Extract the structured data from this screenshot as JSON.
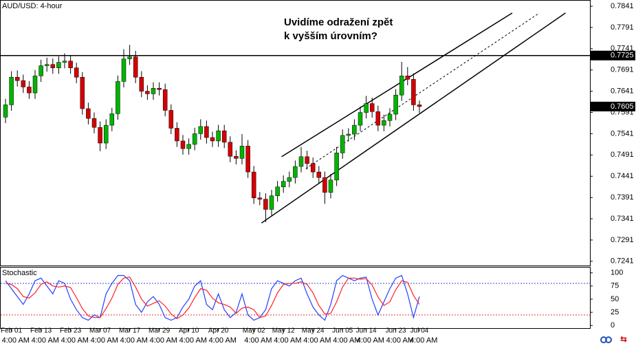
{
  "chart_data": [
    {
      "type": "candlestick",
      "title": "AUD/USD: 4-hour",
      "annotation": [
        "Uvidíme odražení zpět",
        "k vyšším úrovním?"
      ],
      "categories": [
        null,
        "Feb 01",
        null,
        null,
        null,
        null,
        "Feb 13",
        null,
        null,
        null,
        null,
        "Feb 23",
        null,
        null,
        null,
        null,
        "Mar 07",
        null,
        null,
        null,
        null,
        "Mar 17",
        null,
        null,
        null,
        null,
        "Mar 29",
        null,
        null,
        null,
        null,
        "Apr 10",
        null,
        null,
        null,
        null,
        "Apr 20",
        null,
        null,
        null,
        null,
        null,
        "May 02",
        null,
        null,
        null,
        null,
        "May 12",
        null,
        null,
        null,
        null,
        "May 24",
        null,
        null,
        null,
        null,
        "Jun 05",
        null,
        null,
        null,
        "Jun 14",
        null,
        null,
        null,
        null,
        "Jun 23",
        null,
        null,
        null,
        "Jul 04"
      ],
      "time_labels": [
        "4:00 AM",
        "4:00 AM",
        "4:00 AM",
        "4:00 AM",
        "4:00 AM",
        "4:00 AM",
        "4:00 AM",
        "4:00 AM",
        "4:00 AM",
        "4:00 AM",
        "4:00 AM",
        "4:00 AM",
        "4:00 AM",
        "4:00 AM",
        "4:00 AM"
      ],
      "open": [
        0.758,
        0.7609,
        0.7674,
        0.7666,
        0.7651,
        0.7637,
        0.7677,
        0.7701,
        0.7704,
        0.7696,
        0.7709,
        0.7712,
        0.7696,
        0.7674,
        0.76,
        0.7577,
        0.7556,
        0.7519,
        0.7561,
        0.7588,
        0.7664,
        0.7717,
        0.7722,
        0.7674,
        0.7641,
        0.7635,
        0.7648,
        0.7645,
        0.7596,
        0.7554,
        0.7524,
        0.7506,
        0.7516,
        0.7541,
        0.7558,
        0.7532,
        0.7524,
        0.7548,
        0.7521,
        0.7488,
        0.7483,
        0.7512,
        0.7451,
        0.739,
        0.7387,
        0.7363,
        0.7395,
        0.7416,
        0.7429,
        0.7438,
        0.7464,
        0.7487,
        0.7471,
        0.7451,
        0.7438,
        0.7403,
        0.7432,
        0.7496,
        0.7537,
        0.754,
        0.7561,
        0.7591,
        0.7612,
        0.7593,
        0.7561,
        0.7572,
        0.7587,
        0.7632,
        0.7677,
        0.7669,
        0.7609
      ],
      "high": [
        0.7623,
        0.7688,
        0.769,
        0.768,
        0.7665,
        0.7691,
        0.7715,
        0.772,
        0.7718,
        0.7723,
        0.773,
        0.7726,
        0.7708,
        0.7686,
        0.7614,
        0.7591,
        0.757,
        0.7575,
        0.7602,
        0.7678,
        0.774,
        0.775,
        0.7736,
        0.7688,
        0.7655,
        0.7662,
        0.7662,
        0.7659,
        0.761,
        0.7568,
        0.7538,
        0.753,
        0.7555,
        0.7575,
        0.7572,
        0.7546,
        0.7562,
        0.7562,
        0.7535,
        0.7502,
        0.754,
        0.7526,
        0.7465,
        0.7404,
        0.7401,
        0.7409,
        0.743,
        0.7443,
        0.7452,
        0.7478,
        0.751,
        0.7501,
        0.7485,
        0.7465,
        0.7452,
        0.7446,
        0.751,
        0.7551,
        0.7554,
        0.7575,
        0.7605,
        0.763,
        0.7626,
        0.7607,
        0.7586,
        0.7601,
        0.7646,
        0.771,
        0.7698,
        0.7683,
        0.7619
      ],
      "low": [
        0.7566,
        0.7595,
        0.7652,
        0.7637,
        0.7623,
        0.7623,
        0.7663,
        0.7687,
        0.7682,
        0.7682,
        0.7695,
        0.7682,
        0.766,
        0.7586,
        0.7563,
        0.7542,
        0.75,
        0.7505,
        0.7547,
        0.7574,
        0.765,
        0.7703,
        0.766,
        0.7627,
        0.7621,
        0.7621,
        0.7631,
        0.7582,
        0.754,
        0.751,
        0.7492,
        0.7492,
        0.7502,
        0.7527,
        0.7518,
        0.751,
        0.751,
        0.7507,
        0.7474,
        0.7469,
        0.7469,
        0.7437,
        0.7376,
        0.7373,
        0.7333,
        0.7349,
        0.7381,
        0.7402,
        0.7415,
        0.7424,
        0.745,
        0.7457,
        0.7437,
        0.7424,
        0.7376,
        0.7389,
        0.7418,
        0.7482,
        0.7523,
        0.7526,
        0.7547,
        0.7577,
        0.7579,
        0.7547,
        0.7547,
        0.7558,
        0.7573,
        0.7618,
        0.7655,
        0.7595,
        0.759
      ],
      "close": [
        0.7609,
        0.7674,
        0.7666,
        0.7651,
        0.7637,
        0.7677,
        0.7701,
        0.7704,
        0.7696,
        0.7709,
        0.7712,
        0.7696,
        0.7674,
        0.76,
        0.7577,
        0.7556,
        0.7519,
        0.7561,
        0.7588,
        0.7664,
        0.7717,
        0.7722,
        0.7674,
        0.7641,
        0.7635,
        0.7648,
        0.7645,
        0.7596,
        0.7554,
        0.7524,
        0.7506,
        0.7516,
        0.7541,
        0.7558,
        0.7532,
        0.7524,
        0.7548,
        0.7521,
        0.7488,
        0.7483,
        0.7512,
        0.7451,
        0.739,
        0.7387,
        0.7363,
        0.7395,
        0.7416,
        0.7429,
        0.7438,
        0.7464,
        0.7487,
        0.7471,
        0.7451,
        0.7438,
        0.7403,
        0.7432,
        0.7496,
        0.7537,
        0.754,
        0.7561,
        0.7591,
        0.7612,
        0.7593,
        0.7561,
        0.7572,
        0.7587,
        0.7632,
        0.7677,
        0.7669,
        0.7609,
        0.7605
      ],
      "up_color": "#00b400",
      "down_color": "#d40000",
      "ylim": [
        0.7231,
        0.7854
      ],
      "yticks": [
        0.7241,
        0.7291,
        0.7341,
        0.7391,
        0.7441,
        0.7491,
        0.7541,
        0.7591,
        0.7641,
        0.7691,
        0.7741,
        0.7791,
        0.7841
      ],
      "hline": 0.7725,
      "last_price": 0.7605,
      "trendlines": [
        {
          "from": [
            46.7,
            0.7487
          ],
          "to": [
            85.7,
            0.7825
          ],
          "dashed": false
        },
        {
          "from": [
            43.3,
            0.7331
          ],
          "to": [
            94.7,
            0.7825
          ],
          "dashed": false
        },
        {
          "from": [
            50.8,
            0.7459
          ],
          "to": [
            90.3,
            0.7825
          ],
          "dashed": true
        }
      ]
    },
    {
      "type": "line",
      "title": "Stochastic",
      "series": [
        {
          "color": "#2040ff",
          "values": [
            85,
            70,
            55,
            40,
            60,
            85,
            90,
            75,
            60,
            85,
            80,
            50,
            30,
            15,
            10,
            20,
            15,
            60,
            80,
            95,
            95,
            85,
            40,
            25,
            45,
            55,
            40,
            15,
            10,
            15,
            35,
            50,
            75,
            85,
            40,
            30,
            60,
            30,
            15,
            25,
            60,
            20,
            10,
            15,
            30,
            70,
            85,
            80,
            75,
            85,
            90,
            60,
            35,
            20,
            10,
            40,
            85,
            95,
            90,
            85,
            90,
            92,
            50,
            20,
            45,
            70,
            90,
            95,
            60,
            15,
            55
          ]
        },
        {
          "color": "#ff2020",
          "values": [
            80,
            78,
            70,
            55,
            52,
            62,
            78,
            83,
            75,
            73,
            75,
            72,
            53,
            32,
            18,
            15,
            15,
            32,
            52,
            78,
            90,
            92,
            73,
            50,
            37,
            42,
            47,
            37,
            22,
            13,
            20,
            33,
            53,
            70,
            67,
            52,
            43,
            40,
            35,
            23,
            33,
            35,
            30,
            15,
            18,
            38,
            62,
            78,
            80,
            80,
            83,
            78,
            62,
            38,
            22,
            23,
            45,
            73,
            90,
            90,
            88,
            89,
            77,
            54,
            38,
            45,
            68,
            85,
            82,
            57,
            40
          ]
        }
      ],
      "levels": [
        {
          "value": 80,
          "color": "#4040d0"
        },
        {
          "value": 20,
          "color": "#e03030"
        }
      ],
      "ylim": [
        -5,
        110
      ],
      "yticks": [
        0,
        25,
        50,
        75,
        100
      ]
    }
  ]
}
